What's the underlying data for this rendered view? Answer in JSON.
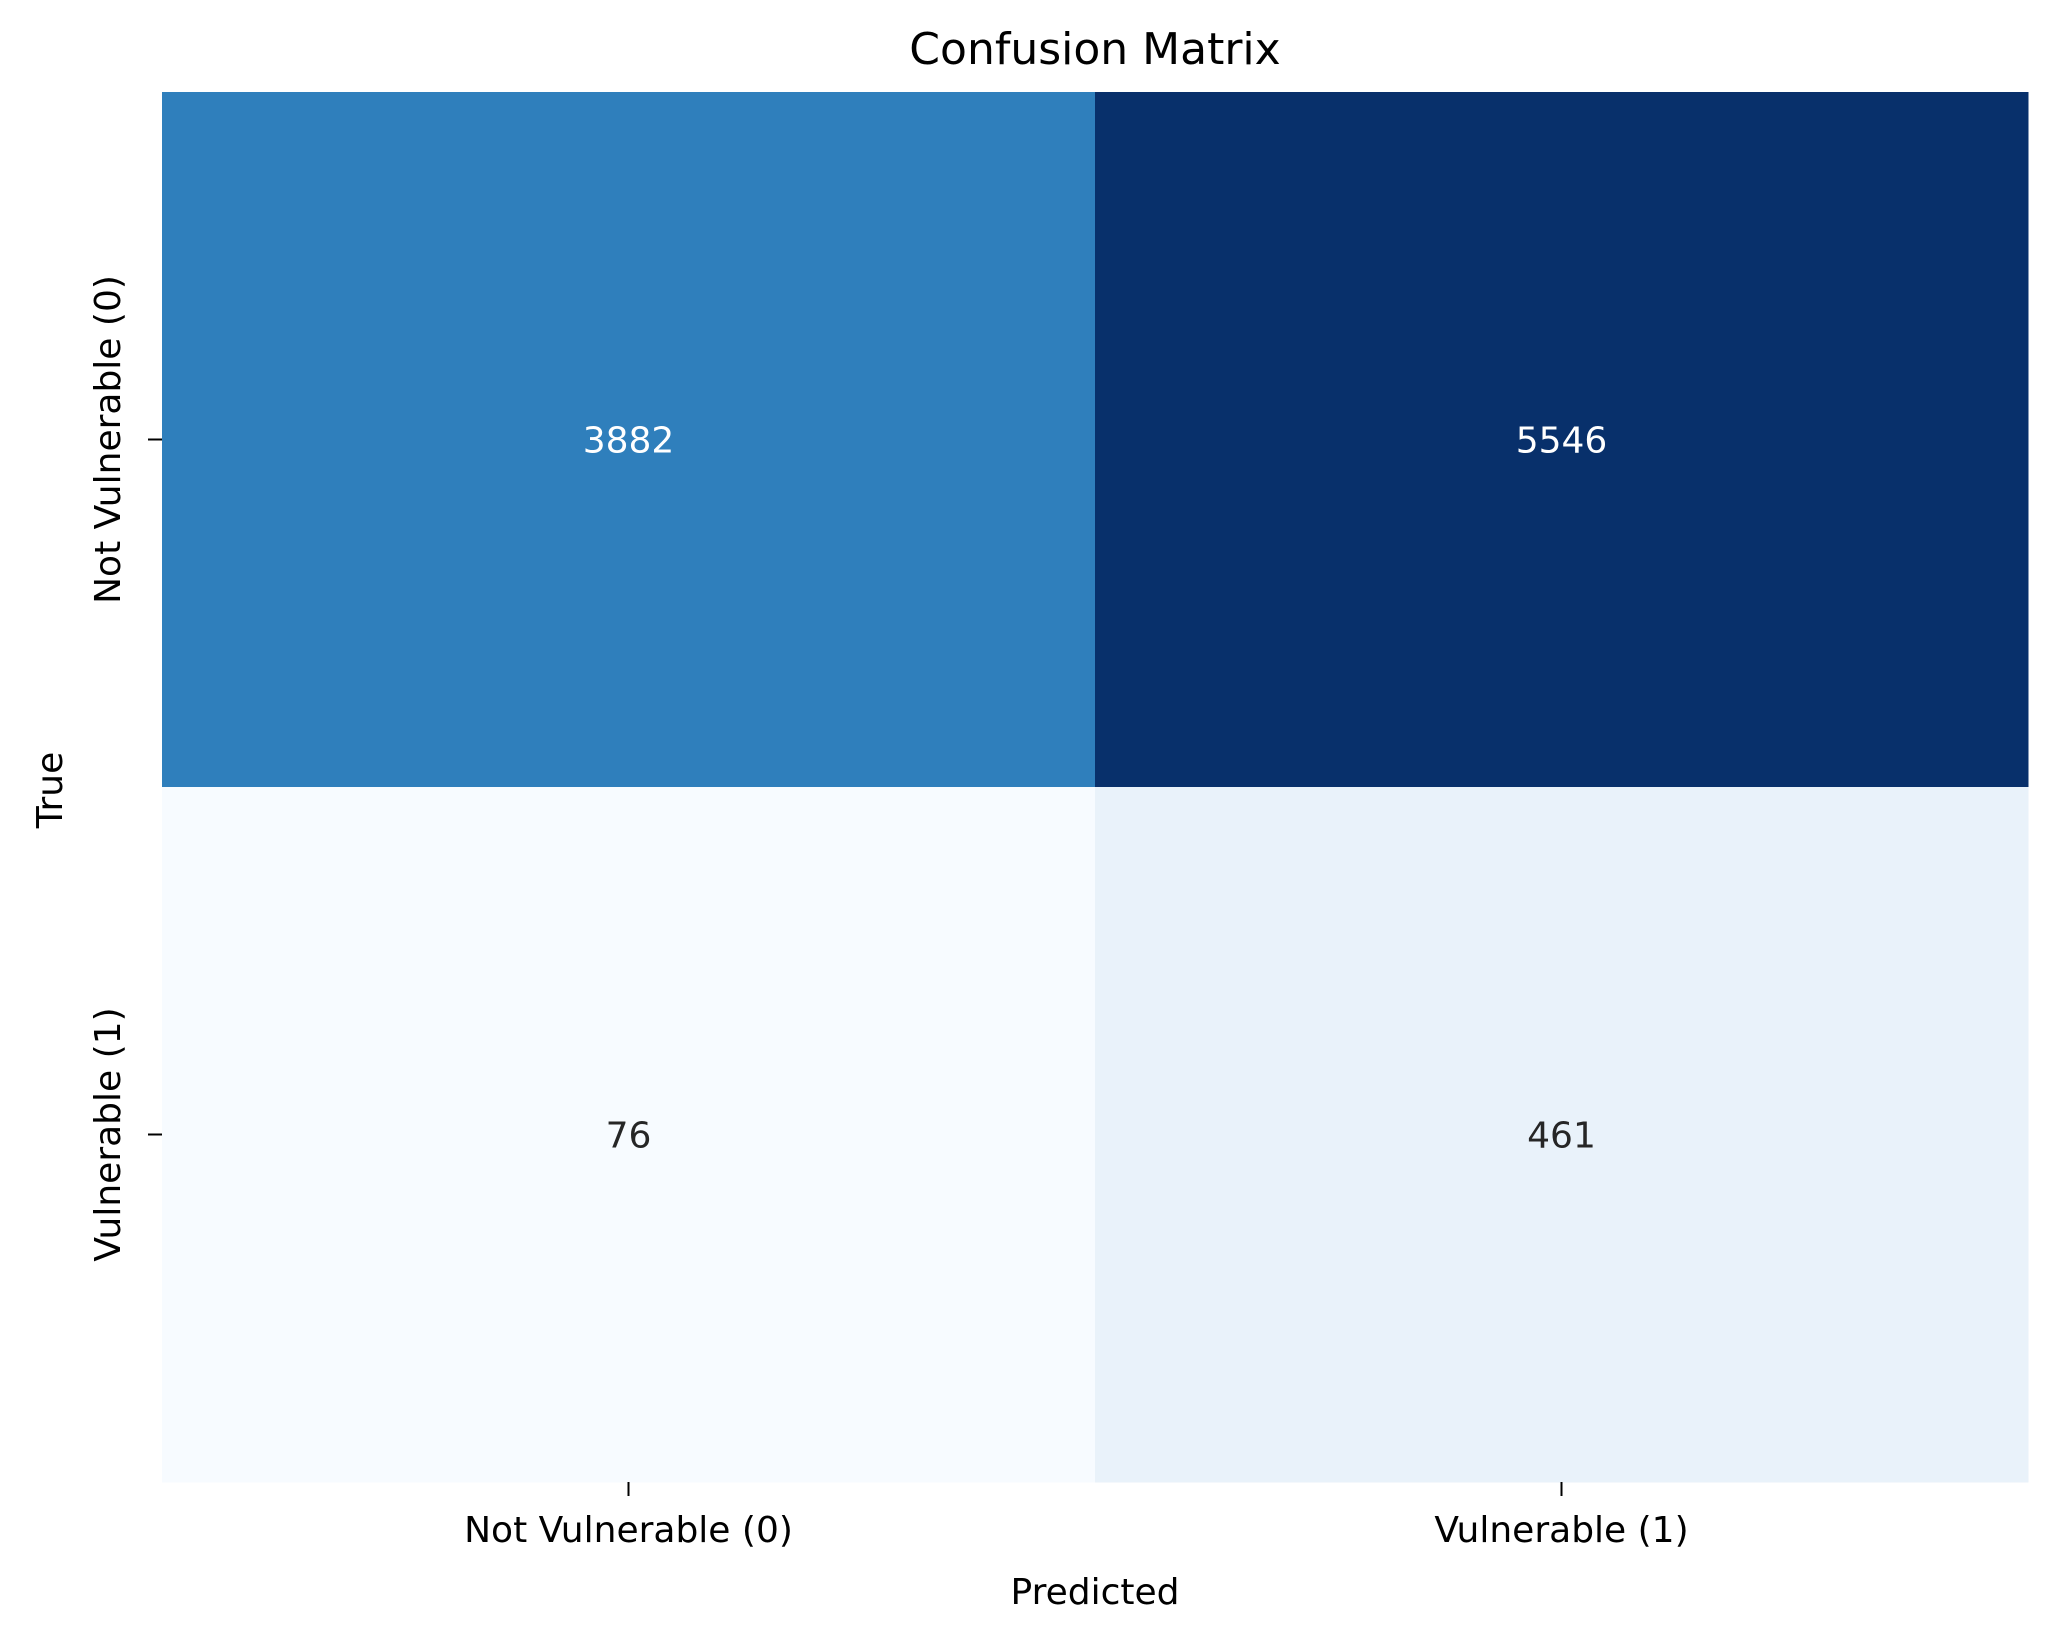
{
  "chart_data": {
    "type": "heatmap",
    "title": "Confusion Matrix",
    "xlabel": "Predicted",
    "ylabel": "True",
    "x_categories": [
      "Not Vulnerable (0)",
      "Vulnerable (1)"
    ],
    "y_categories": [
      "Not Vulnerable (0)",
      "Vulnerable (1)"
    ],
    "values": [
      [
        3882,
        5546
      ],
      [
        76,
        461
      ]
    ],
    "colormap": "Blues",
    "colorbar": false,
    "grid": false
  }
}
